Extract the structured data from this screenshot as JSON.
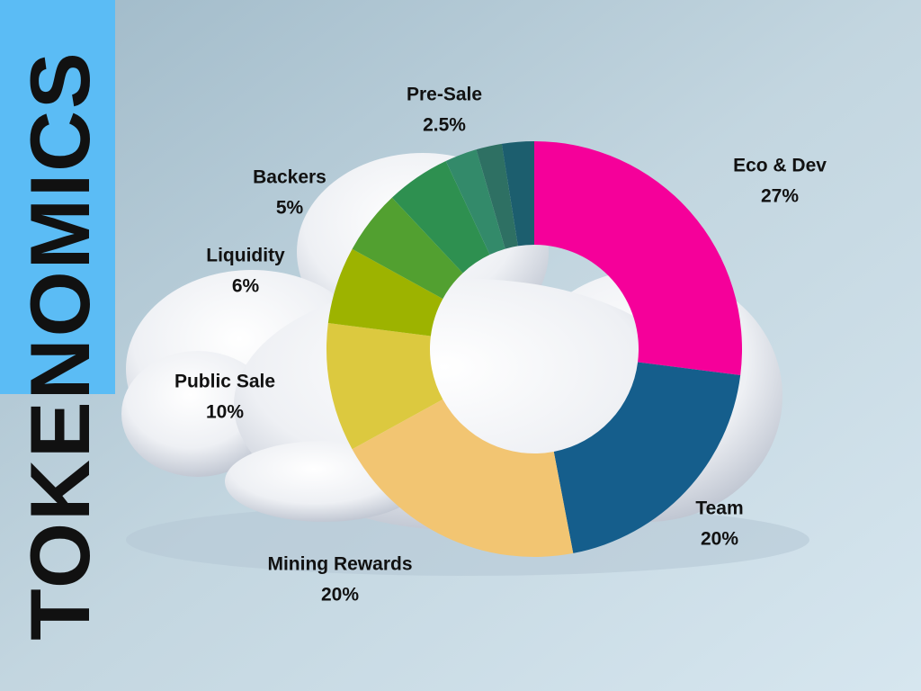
{
  "chart_data": {
    "type": "donut",
    "title": "TOKENOMICS",
    "categories": [
      "Eco & Dev",
      "Team",
      "Mining Rewards",
      "Public Sale",
      "Liquidity",
      "Backers",
      null,
      "Pre-Sale",
      null,
      null
    ],
    "values": [
      27,
      20,
      20,
      10,
      6,
      5,
      5,
      2.5,
      2,
      2.5
    ],
    "value_labels": [
      "27%",
      "20%",
      "20%",
      "10%",
      "6%",
      "5%",
      null,
      "2.5%",
      null,
      null
    ],
    "colors": [
      "#f5009a",
      "#155e8c",
      "#f2c572",
      "#dcc93f",
      "#9db300",
      "#52a030",
      "#2e9050",
      "#338a6a",
      "#2e7063",
      "#1c5e6e"
    ]
  }
}
